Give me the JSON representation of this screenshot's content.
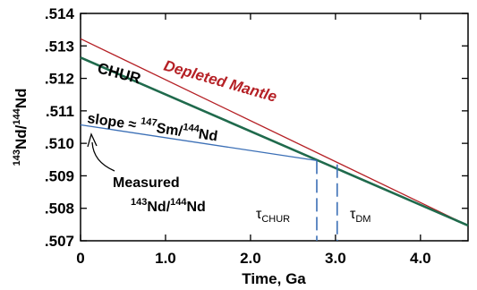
{
  "chart_data": {
    "type": "line",
    "xlabel": "Time, Ga",
    "ylabel": "143Nd/144Nd",
    "ylabel_parts": {
      "sup1": "143",
      "base1": "Nd/",
      "sup2": "144",
      "base2": "Nd"
    },
    "xlim": [
      0,
      4.56
    ],
    "ylim": [
      0.507,
      0.514
    ],
    "x_ticks": [
      0,
      1.0,
      2.0,
      3.0,
      4.0
    ],
    "x_tick_labels": [
      "0",
      "1.0",
      "2.0",
      "3.0",
      "4.0"
    ],
    "y_ticks": [
      0.507,
      0.508,
      0.509,
      0.51,
      0.511,
      0.512,
      0.513,
      0.514
    ],
    "y_tick_labels": [
      ".507",
      ".508",
      ".509",
      ".510",
      ".511",
      ".512",
      ".513",
      ".514"
    ],
    "grid": false,
    "series": [
      {
        "name": "Depleted Mantle",
        "color": "#b52025",
        "x": [
          0,
          4.56
        ],
        "y": [
          0.51322,
          0.50747
        ]
      },
      {
        "name": "CHUR",
        "color": "#1f6a4c",
        "x": [
          0,
          4.56
        ],
        "y": [
          0.51264,
          0.50747
        ]
      },
      {
        "name": "slope ≈ 147Sm/144Nd",
        "color": "#3b6fb6",
        "x": [
          0,
          2.78
        ],
        "y": [
          0.51057,
          0.50947
        ]
      }
    ],
    "markers": [
      {
        "name": "τCHUR",
        "x": 2.78,
        "y_top": 0.50947
      },
      {
        "name": "τDM",
        "x": 3.02,
        "y_top": 0.50935
      }
    ],
    "annotations": {
      "depleted_mantle": "Depleted Mantle",
      "chur": "CHUR",
      "slope": {
        "pre": "slope ≈ ",
        "sup1": "147",
        "mid": "Sm/",
        "sup2": "144",
        "post": "Nd"
      },
      "measured_line1": "Measured",
      "measured_line2": {
        "sup1": "143",
        "mid": "Nd/",
        "sup2": "144",
        "post": "Nd"
      },
      "tau_chur": {
        "main": "τ",
        "sub": "CHUR"
      },
      "tau_dm": {
        "main": "τ",
        "sub": "DM"
      }
    }
  }
}
